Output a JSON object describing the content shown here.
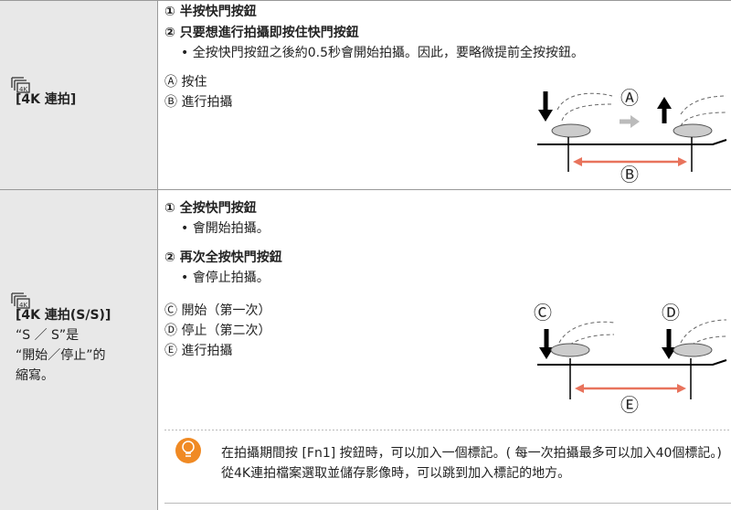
{
  "rows": [
    {
      "mode_label": "[4K 連拍]",
      "steps": [
        {
          "text": "① 半按快門按鈕",
          "bullets": []
        },
        {
          "text": "② 只要想進行拍攝即按住快門按鈕",
          "bullets": [
            "• 全按快門按鈕之後約0.5秒會開始拍攝。因此，要略微提前全按按鈕。"
          ]
        }
      ],
      "legend": [
        "Ⓐ 按住",
        "Ⓑ 進行拍攝"
      ],
      "figure_labels": [
        "Ⓐ",
        "Ⓑ"
      ]
    },
    {
      "mode_label": "[4K 連拍(S/S)]",
      "mode_note": [
        "“S ／ S”是",
        "“開始／停止”的",
        "縮寫。"
      ],
      "steps": [
        {
          "text": "① 全按快門按鈕",
          "bullets": [
            "• 會開始拍攝。"
          ]
        },
        {
          "text": "② 再次全按快門按鈕",
          "bullets": [
            "• 會停止拍攝。"
          ]
        }
      ],
      "legend": [
        "Ⓒ 開始（第一次）",
        "Ⓓ 停止（第二次）",
        "Ⓔ 進行拍攝"
      ],
      "figure_labels": [
        "Ⓒ",
        "Ⓓ",
        "Ⓔ"
      ],
      "tip": "在拍攝期間按 [Fn1] 按鈕時，可以加入一個標記。( 每一次拍攝最多可以加入40個標記。) 從4K連拍檔案選取並儲存影像時，可以跳到加入標記的地方。"
    }
  ]
}
